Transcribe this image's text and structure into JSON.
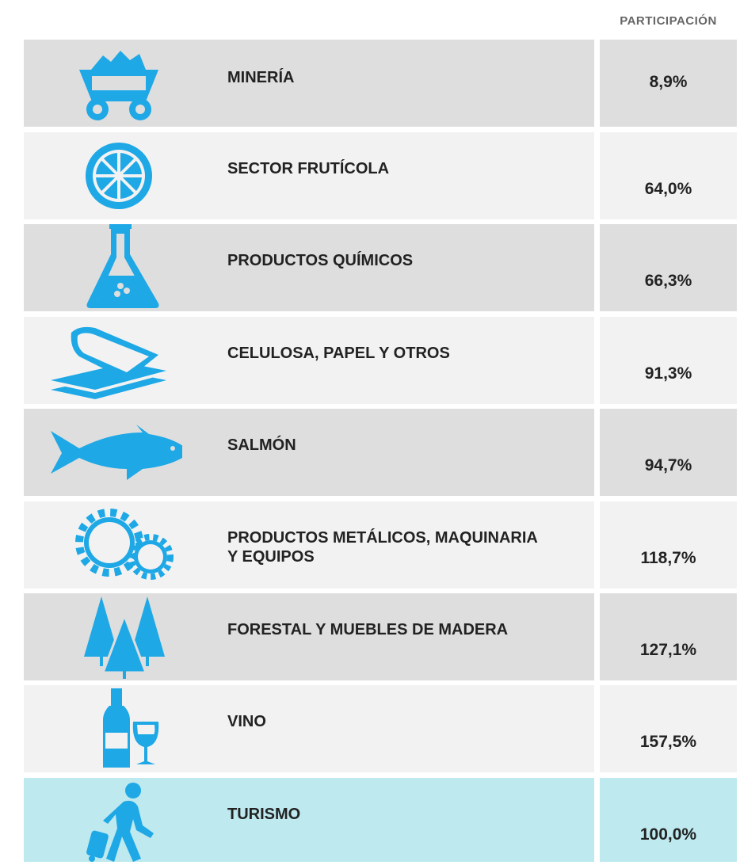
{
  "header": {
    "column": "PARTICIPACIÓN"
  },
  "rows": [
    {
      "label": "MINERÍA",
      "value": "8,9%"
    },
    {
      "label": "SECTOR FRUTÍCOLA",
      "value": "64,0%"
    },
    {
      "label": "PRODUCTOS QUÍMICOS",
      "value": "66,3%"
    },
    {
      "label": "CELULOSA, PAPEL Y OTROS",
      "value": "91,3%"
    },
    {
      "label": "SALMÓN",
      "value": "94,7%"
    },
    {
      "label": "PRODUCTOS METÁLICOS, MAQUINARIA Y EQUIPOS",
      "value": "118,7%"
    },
    {
      "label": "FORESTAL Y MUEBLES DE MADERA",
      "value": "127,1%"
    },
    {
      "label": "VINO",
      "value": "157,5%"
    },
    {
      "label": "TURISMO",
      "value": "100,0%"
    }
  ]
}
